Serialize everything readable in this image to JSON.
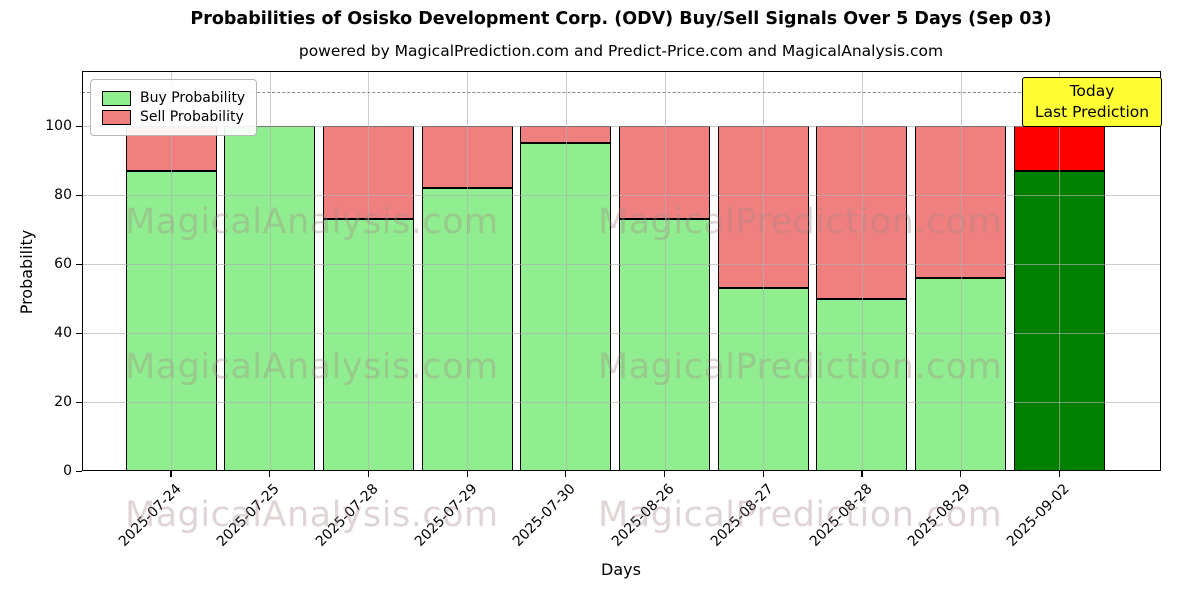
{
  "title": "Probabilities of Osisko Development Corp. (ODV) Buy/Sell Signals Over 5 Days (Sep 03)",
  "subtitle": "powered by MagicalPrediction.com and Predict-Price.com and MagicalAnalysis.com",
  "ylabel": "Probability",
  "xlabel": "Days",
  "legend": {
    "buy_label": "Buy Probability",
    "sell_label": "Sell Probability",
    "buy_color": "#90EE90",
    "sell_color": "#F08080"
  },
  "annotation": {
    "line1": "Today",
    "line2": "Last Prediction",
    "bg_color": "#FFFF33"
  },
  "watermarks": {
    "left_text": "MagicalAnalysis.com",
    "right_text": "MagicalPrediction.com"
  },
  "chart_data": {
    "type": "bar",
    "stacked": true,
    "title": "Probabilities of Osisko Development Corp. (ODV) Buy/Sell Signals Over 5 Days (Sep 03)",
    "xlabel": "Days",
    "ylabel": "Probability",
    "categories": [
      "2025-07-24",
      "2025-07-25",
      "2025-07-28",
      "2025-07-29",
      "2025-07-30",
      "2025-08-26",
      "2025-08-27",
      "2025-08-28",
      "2025-08-29",
      "2025-09-02"
    ],
    "series": [
      {
        "name": "Buy Probability",
        "values": [
          87,
          100,
          73,
          82,
          95,
          73,
          53,
          50,
          56,
          87
        ],
        "bar_colors": [
          "#90EE90",
          "#90EE90",
          "#90EE90",
          "#90EE90",
          "#90EE90",
          "#90EE90",
          "#90EE90",
          "#90EE90",
          "#90EE90",
          "#008000"
        ]
      },
      {
        "name": "Sell Probability",
        "values": [
          13,
          0,
          27,
          18,
          5,
          27,
          47,
          50,
          44,
          13
        ],
        "bar_colors": [
          "#F08080",
          "#F08080",
          "#F08080",
          "#F08080",
          "#F08080",
          "#F08080",
          "#F08080",
          "#F08080",
          "#F08080",
          "#FF0000"
        ]
      }
    ],
    "yticks": [
      0,
      20,
      40,
      60,
      80,
      100
    ],
    "ylim": [
      0,
      116
    ],
    "dashed_line_y": 110,
    "grid": true,
    "legend_position": "upper left"
  }
}
